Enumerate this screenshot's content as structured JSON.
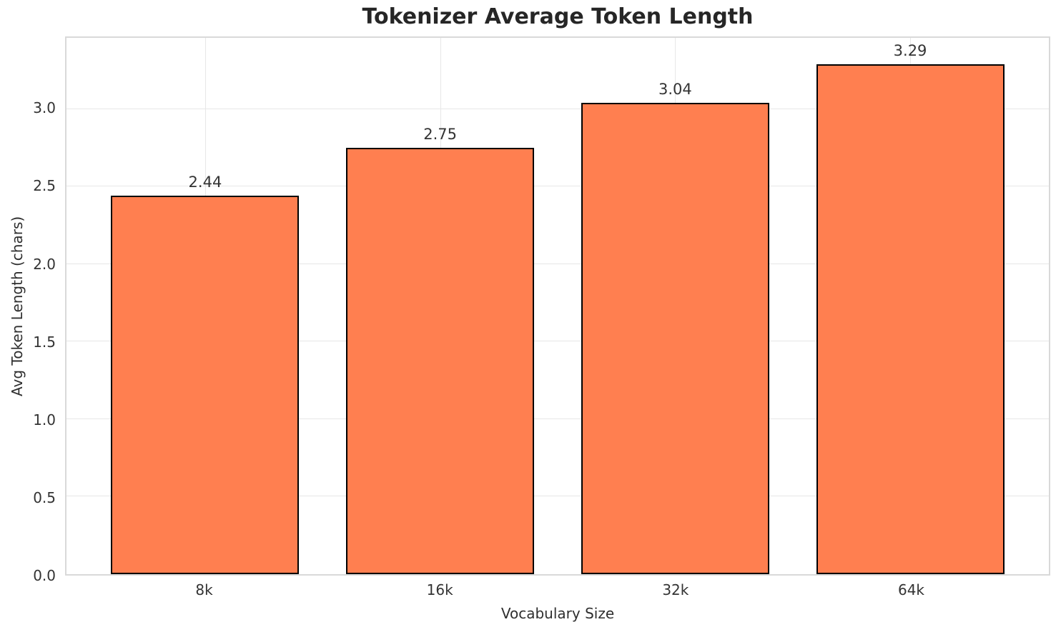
{
  "title": "Tokenizer Average Token Length",
  "colors": {
    "bar_fill": "#FF7F50",
    "bar_edge": "#000000",
    "grid": "#e7e7e7",
    "spine": "#d9d9d9",
    "tick_text": "#333333",
    "title_text": "#262626"
  },
  "chart_data": {
    "type": "bar",
    "title": "Tokenizer Average Token Length",
    "xlabel": "Vocabulary Size",
    "ylabel": "Avg Token Length (chars)",
    "categories": [
      "8k",
      "16k",
      "32k",
      "64k"
    ],
    "values": [
      2.44,
      2.75,
      3.04,
      3.29
    ],
    "value_labels": [
      "2.44",
      "2.75",
      "3.04",
      "3.29"
    ],
    "yticks": [
      0.0,
      0.5,
      1.0,
      1.5,
      2.0,
      2.5,
      3.0
    ],
    "ytick_labels": [
      "0.0",
      "0.5",
      "1.0",
      "1.5",
      "2.0",
      "2.5",
      "3.0"
    ],
    "ylim": [
      0,
      3.46
    ],
    "grid": true,
    "legend_position": "none",
    "bar_color": "#FF7F50",
    "bar_edge_color": "#000000"
  }
}
